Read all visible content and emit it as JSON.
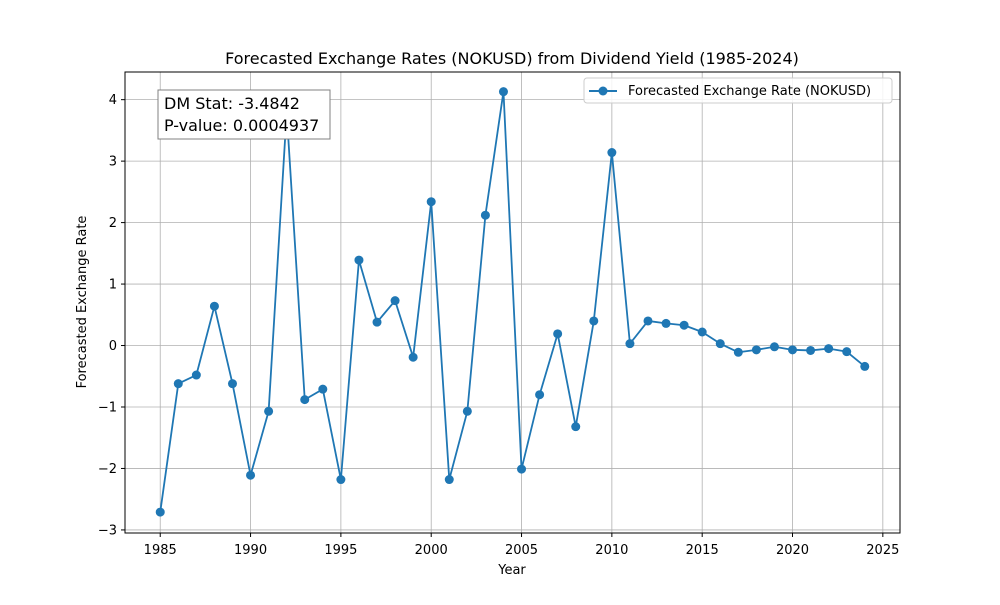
{
  "chart_data": {
    "type": "line",
    "title": "Forecasted Exchange Rates (NOKUSD) from Dividend Yield (1985-2024)",
    "xlabel": "Year",
    "ylabel": "Forecasted Exchange Rate",
    "xlim": [
      1983.05,
      2025.95
    ],
    "ylim": [
      -3.05,
      4.45
    ],
    "xticks": [
      1985,
      1990,
      1995,
      2000,
      2005,
      2010,
      2015,
      2020,
      2025
    ],
    "yticks": [
      -3,
      -2,
      -1,
      0,
      1,
      2,
      3,
      4
    ],
    "grid": true,
    "legend_position": "top-right",
    "annotation": {
      "line1": "DM Stat: -3.4842",
      "line2": "P-value: 0.0004937"
    },
    "series": [
      {
        "name": "Forecasted Exchange Rate (NOKUSD)",
        "color": "#1f77b4",
        "marker": "circle",
        "x": [
          1985,
          1986,
          1987,
          1988,
          1989,
          1990,
          1991,
          1992,
          1993,
          1994,
          1995,
          1996,
          1997,
          1998,
          1999,
          2000,
          2001,
          2002,
          2003,
          2004,
          2005,
          2006,
          2007,
          2008,
          2009,
          2010,
          2011,
          2012,
          2013,
          2014,
          2015,
          2016,
          2017,
          2018,
          2019,
          2020,
          2021,
          2022,
          2023,
          2024
        ],
        "y": [
          -2.71,
          -0.62,
          -0.48,
          0.64,
          -0.62,
          -2.11,
          -1.07,
          3.79,
          -0.88,
          -0.71,
          -2.18,
          1.39,
          0.38,
          0.73,
          -0.19,
          2.34,
          -2.18,
          -1.07,
          2.12,
          4.13,
          -2.01,
          -0.8,
          0.19,
          -1.32,
          0.4,
          3.14,
          0.03,
          0.4,
          0.36,
          0.33,
          0.22,
          0.03,
          -0.11,
          -0.07,
          -0.02,
          -0.07,
          -0.08,
          -0.05,
          -0.1,
          -0.34
        ]
      }
    ]
  }
}
